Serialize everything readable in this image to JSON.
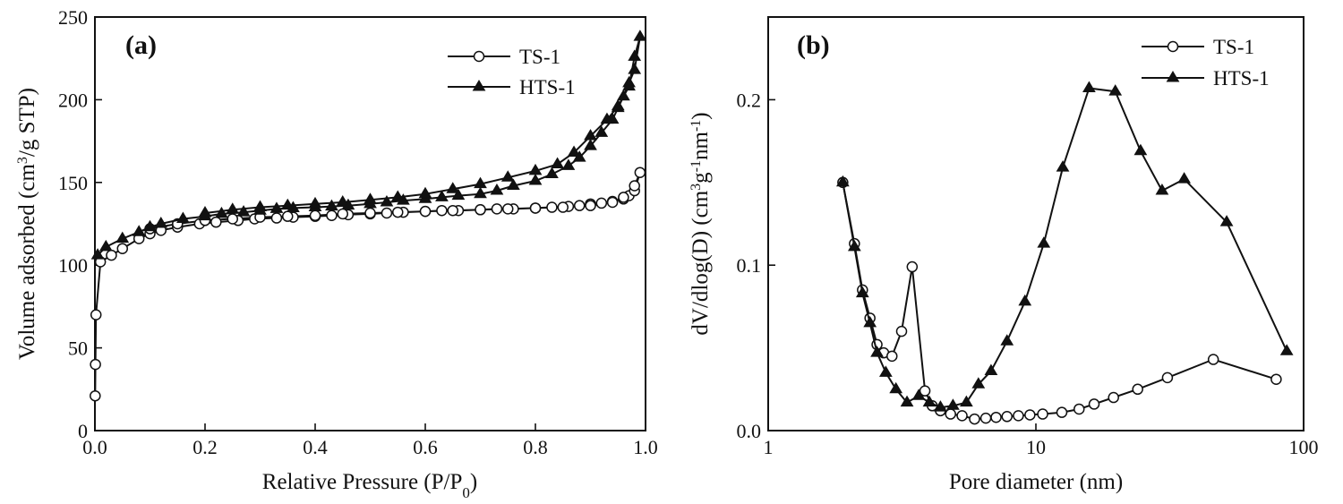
{
  "chart_data": [
    {
      "type": "line",
      "panel_label": "(a)",
      "xlabel": "Relative Pressure (P/P",
      "xlabel_sub": "0",
      "xlabel_end": ")",
      "ylabel_parts": [
        "Volume adsorbed (cm",
        "3",
        "/g STP)"
      ],
      "xlim": [
        0.0,
        1.0
      ],
      "ylim": [
        0,
        250
      ],
      "x_scale": "linear",
      "xticks": [
        0.0,
        0.2,
        0.4,
        0.6,
        0.8,
        1.0
      ],
      "xtick_labels": [
        "0.0",
        "0.2",
        "0.4",
        "0.6",
        "0.8",
        "1.0"
      ],
      "yticks": [
        0,
        50,
        100,
        150,
        200,
        250
      ],
      "ytick_labels": [
        "0",
        "50",
        "100",
        "150",
        "200",
        "250"
      ],
      "legend": {
        "position": "top-right",
        "entries": [
          "TS-1",
          "HTS-1"
        ]
      },
      "series": [
        {
          "name": "TS-1",
          "marker": "open-circle",
          "x": [
            0.0005,
            0.001,
            0.002,
            0.01,
            0.03,
            0.05,
            0.08,
            0.1,
            0.12,
            0.15,
            0.19,
            0.22,
            0.26,
            0.29,
            0.33,
            0.36,
            0.4,
            0.43,
            0.46,
            0.5,
            0.53,
            0.56,
            0.6,
            0.63,
            0.66,
            0.7,
            0.73,
            0.76,
            0.8,
            0.83,
            0.86,
            0.88,
            0.9,
            0.92,
            0.94,
            0.96,
            0.97,
            0.98,
            0.99,
            0.98,
            0.96,
            0.94,
            0.9,
            0.85,
            0.8,
            0.75,
            0.7,
            0.65,
            0.6,
            0.55,
            0.5,
            0.45,
            0.4,
            0.35,
            0.3,
            0.25,
            0.2,
            0.15,
            0.1
          ],
          "y": [
            21,
            40,
            70,
            102,
            106,
            110,
            116,
            119,
            121,
            123,
            125,
            126,
            127,
            128,
            128.5,
            129,
            129.5,
            130,
            130.5,
            131,
            131.5,
            132,
            132.5,
            133,
            133,
            133.5,
            134,
            134,
            134.5,
            135,
            135.5,
            136,
            137,
            137.5,
            138.5,
            140,
            142,
            145,
            156,
            148,
            141,
            138,
            136,
            135,
            134.5,
            134,
            133.5,
            133,
            132.5,
            132,
            131.5,
            131,
            130,
            129.5,
            129,
            128,
            127,
            125,
            122
          ]
        },
        {
          "name": "HTS-1",
          "marker": "filled-triangle",
          "x": [
            0.005,
            0.02,
            0.05,
            0.08,
            0.1,
            0.12,
            0.16,
            0.2,
            0.23,
            0.27,
            0.3,
            0.33,
            0.36,
            0.4,
            0.43,
            0.46,
            0.5,
            0.53,
            0.56,
            0.6,
            0.63,
            0.66,
            0.7,
            0.73,
            0.76,
            0.8,
            0.83,
            0.86,
            0.88,
            0.9,
            0.92,
            0.94,
            0.95,
            0.96,
            0.97,
            0.98,
            0.99,
            0.98,
            0.97,
            0.95,
            0.93,
            0.9,
            0.87,
            0.84,
            0.8,
            0.75,
            0.7,
            0.65,
            0.6,
            0.55,
            0.5,
            0.45,
            0.4,
            0.35,
            0.3,
            0.25,
            0.2
          ],
          "y": [
            106,
            111,
            116,
            120,
            123,
            125,
            128,
            129.5,
            131,
            132,
            133,
            134,
            134.5,
            135,
            135.5,
            136,
            137,
            138,
            139,
            140,
            141,
            142,
            143,
            145,
            148,
            151,
            155,
            160,
            165,
            172,
            180,
            188,
            195,
            202,
            210,
            218,
            238,
            226,
            208,
            196,
            188,
            178,
            168,
            161,
            157,
            153,
            149,
            146,
            143,
            141,
            139.5,
            138,
            137,
            136,
            135,
            133.5,
            131.5
          ]
        }
      ]
    },
    {
      "type": "line",
      "panel_label": "(b)",
      "xlabel": "Pore diameter (nm)",
      "ylabel_parts": [
        "dV/dlog(D) (cm",
        "3",
        "g",
        "-1",
        "nm",
        "-1",
        ")"
      ],
      "xlim": [
        1,
        100
      ],
      "ylim": [
        0.0,
        0.25
      ],
      "x_scale": "log",
      "xticks": [
        1,
        10,
        100
      ],
      "xtick_labels": [
        "1",
        "10",
        "100"
      ],
      "yticks": [
        0.0,
        0.1,
        0.2
      ],
      "ytick_labels": [
        "0.0",
        "0.1",
        "0.2"
      ],
      "legend": {
        "position": "top-right",
        "entries": [
          "TS-1",
          "HTS-1"
        ]
      },
      "series": [
        {
          "name": "TS-1",
          "marker": "open-circle",
          "x": [
            1.9,
            2.1,
            2.25,
            2.4,
            2.55,
            2.7,
            2.9,
            3.15,
            3.45,
            3.85,
            4.1,
            4.4,
            4.8,
            5.3,
            5.9,
            6.5,
            7.1,
            7.8,
            8.6,
            9.5,
            10.6,
            12.5,
            14.5,
            16.5,
            19.5,
            24,
            31,
            46,
            79
          ],
          "y": [
            0.15,
            0.113,
            0.085,
            0.068,
            0.052,
            0.047,
            0.045,
            0.06,
            0.099,
            0.024,
            0.015,
            0.012,
            0.01,
            0.009,
            0.007,
            0.0075,
            0.008,
            0.0085,
            0.009,
            0.0095,
            0.01,
            0.011,
            0.013,
            0.016,
            0.02,
            0.025,
            0.032,
            0.043,
            0.031
          ]
        },
        {
          "name": "HTS-1",
          "marker": "filled-triangle",
          "x": [
            1.9,
            2.1,
            2.25,
            2.4,
            2.55,
            2.75,
            3.0,
            3.3,
            3.65,
            4.0,
            4.4,
            4.9,
            5.5,
            6.1,
            6.8,
            7.8,
            9.1,
            10.7,
            12.6,
            15.8,
            19.8,
            24.6,
            29.6,
            35.8,
            51.6,
            86.5
          ],
          "y": [
            0.15,
            0.111,
            0.083,
            0.065,
            0.047,
            0.035,
            0.025,
            0.017,
            0.021,
            0.017,
            0.014,
            0.015,
            0.017,
            0.028,
            0.036,
            0.054,
            0.078,
            0.113,
            0.159,
            0.207,
            0.205,
            0.169,
            0.145,
            0.152,
            0.126,
            0.048
          ]
        }
      ]
    }
  ]
}
